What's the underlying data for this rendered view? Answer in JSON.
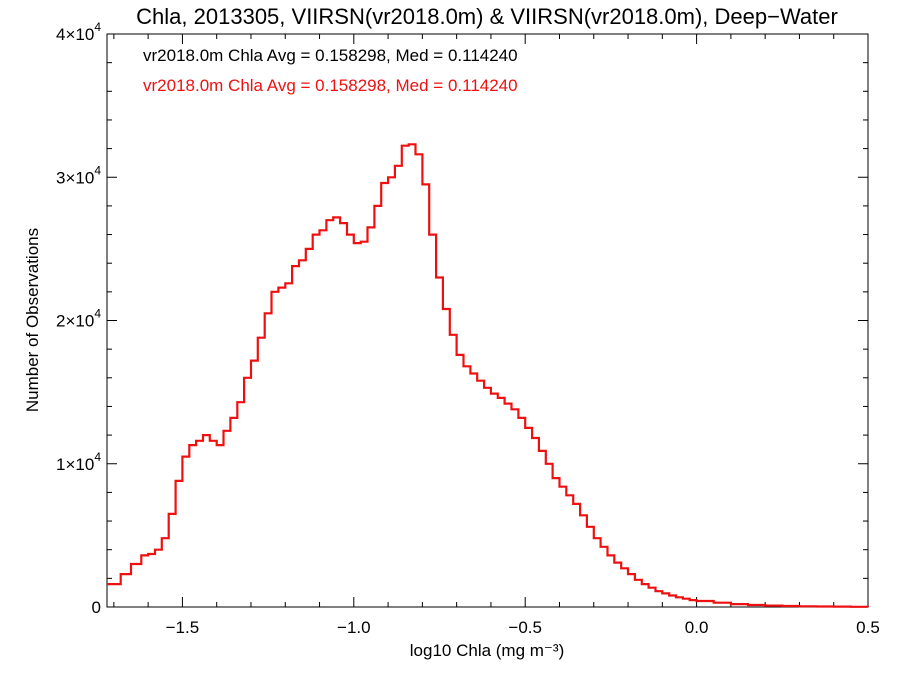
{
  "chart_data": {
    "type": "line",
    "title": "Chla, 2013305, VIIRSN(vr2018.0m) & VIIRSN(vr2018.0m), Deep−Water",
    "xlabel": "log10 Chla (mg m⁻³)",
    "ylabel": "Number of Observations",
    "xlim": [
      -1.72,
      0.5
    ],
    "ylim": [
      0,
      40000
    ],
    "grid": false,
    "x_ticks": [
      {
        "value": -1.5,
        "label": "−1.5"
      },
      {
        "value": -1.0,
        "label": "−1.0"
      },
      {
        "value": -0.5,
        "label": "−0.5"
      },
      {
        "value": 0.0,
        "label": "0.0"
      },
      {
        "value": 0.5,
        "label": "0.5"
      }
    ],
    "y_ticks": [
      {
        "value": 0,
        "base": "0",
        "exp": ""
      },
      {
        "value": 10000,
        "base": "1×10",
        "exp": "4"
      },
      {
        "value": 20000,
        "base": "2×10",
        "exp": "4"
      },
      {
        "value": 30000,
        "base": "3×10",
        "exp": "4"
      },
      {
        "value": 40000,
        "base": "4×10",
        "exp": "4"
      }
    ],
    "annotations": [
      {
        "text": "vr2018.0m Chla Avg = 0.158298, Med = 0.114240",
        "color": "#000000"
      },
      {
        "text": "vr2018.0m Chla Avg = 0.158298, Med = 0.114240",
        "color": "#ee1111"
      }
    ],
    "series": [
      {
        "color": "#ee1111",
        "step": true,
        "points": [
          [
            -1.72,
            1600
          ],
          [
            -1.68,
            2300
          ],
          [
            -1.65,
            3000
          ],
          [
            -1.62,
            3600
          ],
          [
            -1.6,
            3700
          ],
          [
            -1.58,
            4000
          ],
          [
            -1.56,
            4800
          ],
          [
            -1.54,
            6500
          ],
          [
            -1.52,
            8800
          ],
          [
            -1.5,
            10500
          ],
          [
            -1.48,
            11300
          ],
          [
            -1.46,
            11600
          ],
          [
            -1.44,
            12000
          ],
          [
            -1.42,
            11600
          ],
          [
            -1.4,
            11300
          ],
          [
            -1.38,
            12300
          ],
          [
            -1.36,
            13200
          ],
          [
            -1.34,
            14300
          ],
          [
            -1.32,
            16000
          ],
          [
            -1.3,
            17200
          ],
          [
            -1.28,
            18800
          ],
          [
            -1.26,
            20500
          ],
          [
            -1.24,
            22000
          ],
          [
            -1.22,
            22300
          ],
          [
            -1.2,
            22600
          ],
          [
            -1.18,
            23800
          ],
          [
            -1.16,
            24200
          ],
          [
            -1.14,
            25000
          ],
          [
            -1.12,
            26000
          ],
          [
            -1.1,
            26300
          ],
          [
            -1.08,
            27000
          ],
          [
            -1.06,
            27200
          ],
          [
            -1.04,
            26800
          ],
          [
            -1.02,
            26000
          ],
          [
            -1.0,
            25400
          ],
          [
            -0.98,
            25500
          ],
          [
            -0.96,
            26500
          ],
          [
            -0.94,
            28000
          ],
          [
            -0.92,
            29600
          ],
          [
            -0.9,
            30000
          ],
          [
            -0.88,
            30800
          ],
          [
            -0.86,
            32200
          ],
          [
            -0.84,
            32300
          ],
          [
            -0.82,
            31600
          ],
          [
            -0.8,
            29500
          ],
          [
            -0.78,
            26000
          ],
          [
            -0.76,
            23000
          ],
          [
            -0.74,
            20800
          ],
          [
            -0.72,
            19000
          ],
          [
            -0.7,
            17600
          ],
          [
            -0.68,
            16800
          ],
          [
            -0.66,
            16300
          ],
          [
            -0.64,
            15800
          ],
          [
            -0.62,
            15300
          ],
          [
            -0.6,
            14900
          ],
          [
            -0.58,
            14600
          ],
          [
            -0.56,
            14200
          ],
          [
            -0.54,
            13800
          ],
          [
            -0.52,
            13200
          ],
          [
            -0.5,
            12500
          ],
          [
            -0.48,
            11800
          ],
          [
            -0.46,
            10900
          ],
          [
            -0.44,
            10000
          ],
          [
            -0.42,
            9000
          ],
          [
            -0.4,
            8400
          ],
          [
            -0.38,
            7800
          ],
          [
            -0.36,
            7200
          ],
          [
            -0.34,
            6400
          ],
          [
            -0.32,
            5600
          ],
          [
            -0.3,
            4800
          ],
          [
            -0.28,
            4200
          ],
          [
            -0.26,
            3600
          ],
          [
            -0.24,
            3100
          ],
          [
            -0.22,
            2700
          ],
          [
            -0.2,
            2300
          ],
          [
            -0.18,
            1900
          ],
          [
            -0.16,
            1600
          ],
          [
            -0.14,
            1350
          ],
          [
            -0.12,
            1100
          ],
          [
            -0.1,
            950
          ],
          [
            -0.08,
            800
          ],
          [
            -0.06,
            680
          ],
          [
            -0.04,
            580
          ],
          [
            -0.02,
            480
          ],
          [
            0.0,
            420
          ],
          [
            0.05,
            300
          ],
          [
            0.1,
            200
          ],
          [
            0.15,
            140
          ],
          [
            0.2,
            100
          ],
          [
            0.25,
            70
          ],
          [
            0.3,
            50
          ],
          [
            0.35,
            35
          ],
          [
            0.4,
            25
          ],
          [
            0.45,
            15
          ],
          [
            0.5,
            10
          ]
        ]
      },
      {
        "color": "#000000",
        "step": true,
        "points": [
          [
            -1.72,
            1600
          ],
          [
            -1.68,
            2300
          ],
          [
            -1.65,
            3000
          ],
          [
            -1.62,
            3600
          ],
          [
            -1.6,
            3700
          ],
          [
            -1.58,
            4000
          ],
          [
            -1.56,
            4800
          ],
          [
            -1.54,
            6500
          ],
          [
            -1.52,
            8800
          ],
          [
            -1.5,
            10500
          ],
          [
            -1.48,
            11300
          ],
          [
            -1.46,
            11600
          ],
          [
            -1.44,
            12000
          ],
          [
            -1.42,
            11600
          ],
          [
            -1.4,
            11300
          ],
          [
            -1.38,
            12300
          ],
          [
            -1.36,
            13200
          ],
          [
            -1.34,
            14300
          ],
          [
            -1.32,
            16000
          ],
          [
            -1.3,
            17200
          ],
          [
            -1.28,
            18800
          ],
          [
            -1.26,
            20500
          ],
          [
            -1.24,
            22000
          ],
          [
            -1.22,
            22300
          ],
          [
            -1.2,
            22600
          ],
          [
            -1.18,
            23800
          ],
          [
            -1.16,
            24200
          ],
          [
            -1.14,
            25000
          ],
          [
            -1.12,
            26000
          ],
          [
            -1.1,
            26300
          ],
          [
            -1.08,
            27000
          ],
          [
            -1.06,
            27200
          ],
          [
            -1.04,
            26800
          ],
          [
            -1.02,
            26000
          ],
          [
            -1.0,
            25400
          ],
          [
            -0.98,
            25500
          ],
          [
            -0.96,
            26500
          ],
          [
            -0.94,
            28000
          ],
          [
            -0.92,
            29600
          ],
          [
            -0.9,
            30000
          ],
          [
            -0.88,
            30800
          ],
          [
            -0.86,
            32200
          ],
          [
            -0.84,
            32300
          ],
          [
            -0.82,
            31600
          ],
          [
            -0.8,
            29500
          ],
          [
            -0.78,
            26000
          ],
          [
            -0.76,
            23000
          ],
          [
            -0.74,
            20800
          ],
          [
            -0.72,
            19000
          ],
          [
            -0.7,
            17600
          ],
          [
            -0.68,
            16800
          ],
          [
            -0.66,
            16300
          ],
          [
            -0.64,
            15800
          ],
          [
            -0.62,
            15300
          ],
          [
            -0.6,
            14900
          ],
          [
            -0.58,
            14600
          ],
          [
            -0.56,
            14200
          ],
          [
            -0.54,
            13800
          ],
          [
            -0.52,
            13200
          ],
          [
            -0.5,
            12500
          ],
          [
            -0.48,
            11800
          ],
          [
            -0.46,
            10900
          ],
          [
            -0.44,
            10000
          ],
          [
            -0.42,
            9000
          ],
          [
            -0.4,
            8400
          ],
          [
            -0.38,
            7800
          ],
          [
            -0.36,
            7200
          ],
          [
            -0.34,
            6400
          ],
          [
            -0.32,
            5600
          ],
          [
            -0.3,
            4800
          ],
          [
            -0.28,
            4200
          ],
          [
            -0.26,
            3600
          ],
          [
            -0.24,
            3100
          ],
          [
            -0.22,
            2700
          ],
          [
            -0.2,
            2300
          ],
          [
            -0.18,
            1900
          ],
          [
            -0.16,
            1600
          ],
          [
            -0.14,
            1350
          ],
          [
            -0.12,
            1100
          ],
          [
            -0.1,
            950
          ],
          [
            -0.08,
            800
          ],
          [
            -0.06,
            680
          ],
          [
            -0.04,
            580
          ],
          [
            -0.02,
            480
          ],
          [
            0.0,
            420
          ],
          [
            0.05,
            300
          ],
          [
            0.1,
            200
          ],
          [
            0.15,
            140
          ],
          [
            0.2,
            100
          ],
          [
            0.25,
            70
          ],
          [
            0.3,
            50
          ],
          [
            0.35,
            35
          ],
          [
            0.4,
            25
          ],
          [
            0.45,
            15
          ],
          [
            0.5,
            10
          ]
        ]
      }
    ]
  }
}
